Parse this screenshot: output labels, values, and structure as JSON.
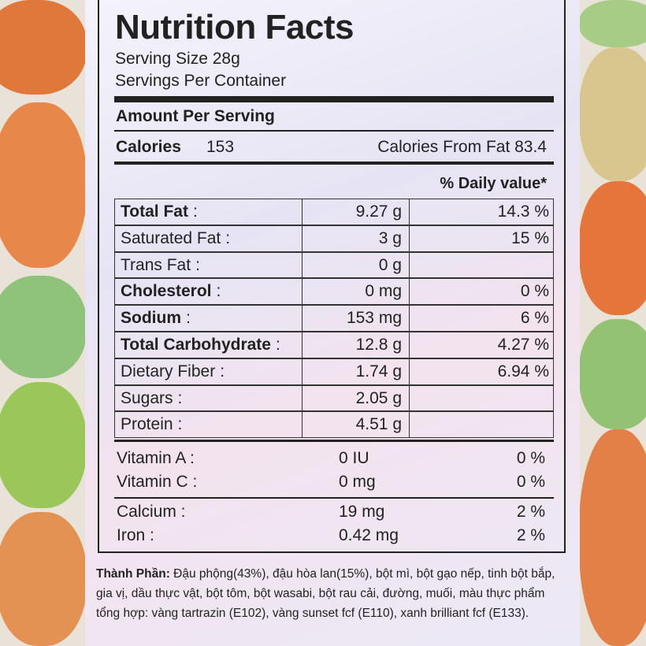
{
  "title": "Nutrition Facts",
  "serving_size": "Serving Size 28g",
  "servings_per_container": "Servings Per Container",
  "amount_per_serving": "Amount Per Serving",
  "calories": {
    "label": "Calories",
    "value": "153",
    "from_fat": "Calories From Fat 83.4"
  },
  "daily_value_header": "% Daily value*",
  "nutrients": [
    {
      "name": "Total Fat",
      "bold": true,
      "sep": ":",
      "amount": "9.27 g",
      "dv": "14.3 %"
    },
    {
      "name": "Saturated Fat",
      "bold": false,
      "sep": ":",
      "amount": "3 g",
      "dv": "15 %"
    },
    {
      "name": "Trans Fat",
      "bold": false,
      "sep": ":",
      "amount": "0 g",
      "dv": null
    },
    {
      "name": "Cholesterol",
      "bold": true,
      "sep": ":",
      "amount": "0 mg",
      "dv": "0 %"
    },
    {
      "name": "Sodium",
      "bold": true,
      "sep": ":",
      "amount": "153 mg",
      "dv": "6 %"
    },
    {
      "name": "Total Carbohydrate",
      "bold": true,
      "sep": ":",
      "amount": "12.8 g",
      "dv": "4.27 %"
    },
    {
      "name": "Dietary Fiber",
      "bold": false,
      "sep": ":",
      "amount": "1.74 g",
      "dv": "6.94 %"
    },
    {
      "name": "Sugars",
      "bold": false,
      "sep": ":",
      "amount": "2.05 g",
      "dv": null
    },
    {
      "name": "Protein",
      "bold": false,
      "sep": ":",
      "amount": "4.51 g",
      "dv": null
    }
  ],
  "vitamins": [
    {
      "name": "Vitamin A :",
      "amount": "0 IU",
      "dv": "0 %"
    },
    {
      "name": "Vitamin C :",
      "amount": "0 mg",
      "dv": "0 %"
    },
    {
      "name": "Calcium :",
      "amount": "19 mg",
      "dv": "2 %"
    },
    {
      "name": "Iron :",
      "amount": "0.42 mg",
      "dv": "2 %"
    }
  ],
  "ingredients": {
    "label": "Thành Phần:",
    "text": "Đậu phộng(43%), đậu hòa lan(15%), bột mì, bột gạo nếp, tinh bột bắp, gia vị, dầu thực vật, bột tôm, bột wasabi, bột rau cải, đường, muối, màu thực phẩm tổng hợp: vàng tartrazin (E102), vàng sunset fcf (E110), xanh brilliant fcf (E133)."
  }
}
